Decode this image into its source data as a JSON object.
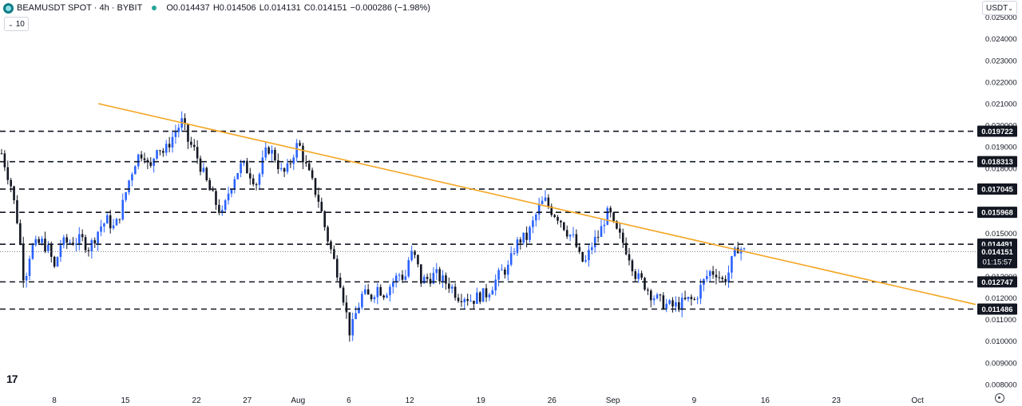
{
  "header": {
    "symbol": "BEAMUSDT SPOT · 4h · BYBIT",
    "open": "O0.014437",
    "high": "H0.014506",
    "low": "L0.014131",
    "close": "C0.014151",
    "change": "−0.000286 (−1.98%)"
  },
  "volume_toggle": {
    "value": "10"
  },
  "currency_selector": {
    "value": "USDT"
  },
  "colors": {
    "up": "#2962ff",
    "down": "#131722",
    "trendline": "#f5a623",
    "level": "#131722"
  },
  "chart_data": {
    "type": "candlestick",
    "title": "",
    "xlabel": "",
    "ylabel": "",
    "ylim": [
      0.0077,
      0.0258
    ],
    "x_ticks": [
      {
        "label": "8",
        "day": 8
      },
      {
        "label": "15",
        "day": 15
      },
      {
        "label": "22",
        "day": 22
      },
      {
        "label": "27",
        "day": 27
      },
      {
        "label": "Aug",
        "day": 32
      },
      {
        "label": "6",
        "day": 37
      },
      {
        "label": "12",
        "day": 43
      },
      {
        "label": "19",
        "day": 50
      },
      {
        "label": "26",
        "day": 57
      },
      {
        "label": "Sep",
        "day": 63
      },
      {
        "label": "9",
        "day": 71
      },
      {
        "label": "16",
        "day": 78
      },
      {
        "label": "23",
        "day": 85
      },
      {
        "label": "Oct",
        "day": 93
      }
    ],
    "y_ticks": [
      "0.025000",
      "0.024000",
      "0.023000",
      "0.022000",
      "0.021000",
      "0.020000",
      "0.019000",
      "0.018000",
      "0.017000",
      "0.016000",
      "0.015000",
      "0.014000",
      "0.013000",
      "0.012000",
      "0.011000",
      "0.010000",
      "0.009000",
      "0.008000"
    ],
    "price_path": [
      [
        0.0,
        0.0187
      ],
      [
        1.3,
        0.0172
      ],
      [
        2.3,
        0.0153
      ],
      [
        3.1,
        0.0127
      ],
      [
        4.0,
        0.0143
      ],
      [
        5.5,
        0.0146
      ],
      [
        6.5,
        0.0142
      ],
      [
        7.3,
        0.0133
      ],
      [
        8.0,
        0.0145
      ],
      [
        9.5,
        0.0146
      ],
      [
        11.0,
        0.0147
      ],
      [
        12.0,
        0.0143
      ],
      [
        13.5,
        0.0153
      ],
      [
        14.5,
        0.0156
      ],
      [
        15.5,
        0.0152
      ],
      [
        16.5,
        0.0162
      ],
      [
        17.5,
        0.0175
      ],
      [
        18.5,
        0.0185
      ],
      [
        19.5,
        0.0188
      ],
      [
        20.3,
        0.0178
      ],
      [
        21.3,
        0.0191
      ],
      [
        22.3,
        0.0187
      ],
      [
        23.0,
        0.0192
      ],
      [
        24.0,
        0.0198
      ],
      [
        24.8,
        0.0202
      ],
      [
        25.5,
        0.0193
      ],
      [
        26.5,
        0.0188
      ],
      [
        27.5,
        0.0179
      ],
      [
        28.5,
        0.017
      ],
      [
        29.5,
        0.0163
      ],
      [
        30.3,
        0.0158
      ],
      [
        31.0,
        0.0168
      ],
      [
        32.0,
        0.0177
      ],
      [
        33.0,
        0.0182
      ],
      [
        34.0,
        0.0178
      ],
      [
        35.0,
        0.0173
      ],
      [
        35.8,
        0.0183
      ],
      [
        36.5,
        0.019
      ],
      [
        37.5,
        0.0185
      ],
      [
        38.5,
        0.0177
      ],
      [
        39.3,
        0.018
      ],
      [
        40.0,
        0.0187
      ],
      [
        40.7,
        0.0192
      ],
      [
        41.5,
        0.0183
      ],
      [
        42.5,
        0.0174
      ],
      [
        43.5,
        0.0165
      ],
      [
        44.5,
        0.015
      ],
      [
        45.5,
        0.0138
      ],
      [
        46.5,
        0.0127
      ],
      [
        47.3,
        0.0112
      ],
      [
        47.8,
        0.0103
      ],
      [
        48.5,
        0.0112
      ],
      [
        49.5,
        0.0122
      ],
      [
        50.5,
        0.012
      ],
      [
        51.5,
        0.0125
      ],
      [
        52.5,
        0.0122
      ],
      [
        53.5,
        0.0127
      ],
      [
        54.5,
        0.0131
      ],
      [
        55.3,
        0.0129
      ],
      [
        56.0,
        0.0141
      ],
      [
        56.8,
        0.0138
      ],
      [
        57.5,
        0.0128
      ],
      [
        58.5,
        0.0129
      ],
      [
        59.5,
        0.0131
      ],
      [
        60.5,
        0.0128
      ],
      [
        61.5,
        0.0126
      ],
      [
        62.5,
        0.0121
      ],
      [
        63.5,
        0.0121
      ],
      [
        64.5,
        0.0119
      ],
      [
        65.5,
        0.0121
      ],
      [
        66.5,
        0.0122
      ],
      [
        67.5,
        0.0127
      ],
      [
        68.5,
        0.0132
      ],
      [
        69.5,
        0.0134
      ],
      [
        70.3,
        0.0143
      ],
      [
        71.0,
        0.0147
      ],
      [
        72.0,
        0.0148
      ],
      [
        73.0,
        0.0156
      ],
      [
        73.8,
        0.0163
      ],
      [
        74.5,
        0.0165
      ],
      [
        75.5,
        0.016
      ],
      [
        76.5,
        0.0157
      ],
      [
        77.5,
        0.0151
      ],
      [
        78.5,
        0.0147
      ],
      [
        79.3,
        0.0138
      ],
      [
        80.0,
        0.0136
      ],
      [
        81.0,
        0.0145
      ],
      [
        82.0,
        0.015
      ],
      [
        82.7,
        0.0157
      ],
      [
        83.3,
        0.016
      ],
      [
        84.0,
        0.0152
      ],
      [
        85.0,
        0.0147
      ],
      [
        86.0,
        0.014
      ],
      [
        87.0,
        0.013
      ],
      [
        88.0,
        0.0127
      ],
      [
        89.0,
        0.0122
      ],
      [
        90.0,
        0.0119
      ],
      [
        91.0,
        0.0117
      ],
      [
        92.0,
        0.0116
      ],
      [
        93.0,
        0.0117
      ],
      [
        94.0,
        0.0119
      ],
      [
        95.0,
        0.0119
      ],
      [
        96.0,
        0.0126
      ],
      [
        97.0,
        0.0132
      ],
      [
        98.0,
        0.0132
      ],
      [
        98.8,
        0.0128
      ],
      [
        99.5,
        0.013
      ],
      [
        100.2,
        0.0138
      ],
      [
        101.0,
        0.0144
      ],
      [
        101.8,
        0.01415
      ]
    ],
    "price_path_x_unit": "index",
    "trendline": {
      "from": {
        "day": 21.0,
        "value": 0.021
      },
      "to": {
        "day": 110.0,
        "value": 0.0117
      }
    },
    "levels": [
      {
        "label": "0.019722",
        "value": 0.019722
      },
      {
        "label": "0.018313",
        "value": 0.018313
      },
      {
        "label": "0.017045",
        "value": 0.017045
      },
      {
        "label": "0.015968",
        "value": 0.015968
      },
      {
        "label": "0.014491",
        "value": 0.014491
      },
      {
        "label": "0.012747",
        "value": 0.012747
      },
      {
        "label": "0.011486",
        "value": 0.011486
      }
    ],
    "last_price": {
      "label": "0.014151",
      "value": 0.014151,
      "countdown": "01:15:57"
    }
  }
}
